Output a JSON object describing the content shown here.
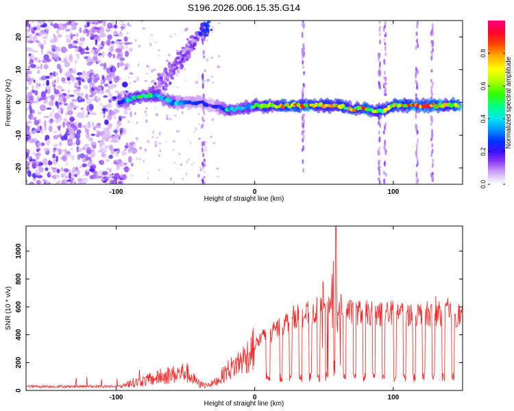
{
  "title": "S196.2026.006.15.35.G14",
  "chart_data": [
    {
      "type": "heatmap",
      "name": "spectrogram",
      "xlabel": "Height of straight line (km)",
      "ylabel": "Frequency (Hz)",
      "xlim": [
        -165,
        150
      ],
      "ylim": [
        -25,
        25
      ],
      "xticks": [
        -100,
        0,
        100
      ],
      "yticks": [
        -20,
        -10,
        0,
        10,
        20
      ],
      "colorbar": {
        "label": "Normalized spectral amplitude",
        "range": [
          0,
          1
        ],
        "ticks": [
          "0.0",
          "0.2",
          "0.4",
          "0.6",
          "0.8"
        ],
        "colors": [
          "#ffffff",
          "#e9d5f7",
          "#c49cf0",
          "#9a4cf0",
          "#7a2cf0",
          "#3a10ff",
          "#0000ff",
          "#0070ff",
          "#00d0ff",
          "#00ff9a",
          "#30ff00",
          "#b0ff00",
          "#ffff00",
          "#ffb000",
          "#ff5000",
          "#ff0020",
          "#ff0080"
        ]
      },
      "ridge": {
        "description": "dominant frequency track",
        "x": [
          -98,
          -90,
          -80,
          -70,
          -60,
          -50,
          -40,
          -30,
          -20,
          -10,
          0,
          10,
          20,
          30,
          40,
          50,
          60,
          70,
          80,
          90,
          100,
          110,
          120,
          130,
          140,
          148
        ],
        "freq": [
          0,
          1,
          2,
          2,
          0,
          0,
          0,
          -1,
          -2,
          -2,
          -1,
          -1,
          -1,
          -1,
          -1,
          -1,
          -1,
          -2,
          -2,
          -3,
          -1,
          -1,
          -1,
          -1,
          -1,
          -1
        ],
        "amplitude": [
          0.3,
          0.45,
          0.5,
          0.45,
          0.4,
          0.3,
          0.25,
          0.2,
          0.45,
          0.5,
          0.55,
          0.65,
          0.75,
          0.8,
          0.9,
          0.7,
          0.75,
          0.7,
          0.85,
          0.6,
          0.7,
          0.85,
          0.9,
          0.8,
          0.85,
          0.9
        ]
      },
      "noise_region_x": [
        -165,
        -95
      ]
    },
    {
      "type": "line",
      "name": "snr",
      "xlabel": "Height of straight line (km)",
      "ylabel": "SNR (10 * v/v)",
      "xlim": [
        -165,
        150
      ],
      "ylim": [
        0,
        1180
      ],
      "xticks": [
        -100,
        0,
        100
      ],
      "yticks": [
        0,
        200,
        400,
        600,
        800,
        1000
      ],
      "color": "#ff2020",
      "x": [
        -165,
        -150,
        -140,
        -130,
        -120,
        -110,
        -100,
        -90,
        -80,
        -70,
        -60,
        -55,
        -50,
        -45,
        -40,
        -35,
        -30,
        -25,
        -20,
        -15,
        -10,
        -5,
        0,
        5,
        10,
        15,
        20,
        25,
        30,
        35,
        40,
        45,
        50,
        55,
        58,
        60,
        65,
        70,
        75,
        80,
        90,
        100,
        110,
        120,
        130,
        140,
        150
      ],
      "y": [
        25,
        25,
        30,
        25,
        30,
        35,
        40,
        70,
        90,
        120,
        150,
        160,
        180,
        120,
        60,
        50,
        60,
        100,
        170,
        200,
        250,
        300,
        360,
        420,
        440,
        480,
        520,
        560,
        600,
        600,
        620,
        640,
        650,
        700,
        1180,
        680,
        640,
        620,
        620,
        620,
        610,
        620,
        610,
        610,
        610,
        610,
        600
      ]
    }
  ]
}
